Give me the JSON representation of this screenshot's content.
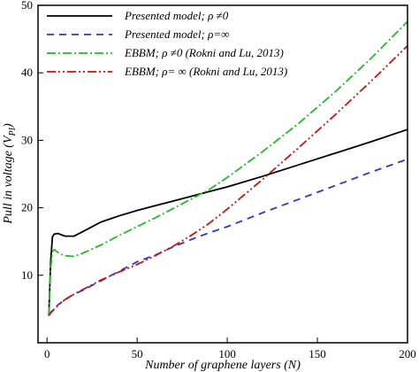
{
  "chart_data": {
    "type": "line",
    "xlabel": "Number of graphene layers (N)",
    "ylabel": "Pull in voltage (V",
    "ylabel_sub": "PI",
    "ylabel_close": ")",
    "xlim": [
      -5,
      200
    ],
    "ylim": [
      0,
      50
    ],
    "xticks": [
      0,
      50,
      100,
      150,
      200
    ],
    "yticks": [
      10,
      20,
      30,
      40,
      50
    ],
    "grid": false,
    "legend_position": "top-left",
    "series": [
      {
        "name": "Presented model; ρ ≠0",
        "color": "#000000",
        "dash": "",
        "x": [
          1,
          2,
          3,
          4,
          6,
          8,
          10,
          15,
          20,
          30,
          40,
          50,
          60,
          70,
          80,
          90,
          100,
          120,
          140,
          160,
          180,
          200
        ],
        "y": [
          4,
          12,
          15.7,
          16.1,
          16.2,
          16.0,
          15.8,
          15.8,
          16.5,
          17.9,
          18.8,
          19.6,
          20.3,
          21.0,
          21.7,
          22.4,
          23.1,
          24.7,
          26.4,
          28.1,
          29.8,
          31.6
        ]
      },
      {
        "name": "Presented model; ρ=∞",
        "color": "#3333cc",
        "dash": "8,6",
        "x": [
          1,
          2,
          4,
          6,
          8,
          10,
          15,
          20,
          30,
          40,
          50,
          60,
          70,
          80,
          90,
          100,
          120,
          140,
          160,
          180,
          200
        ],
        "y": [
          4,
          4.5,
          5.0,
          5.6,
          6.0,
          6.4,
          7.2,
          7.8,
          9.2,
          10.6,
          12.0,
          13.0,
          14.2,
          15.3,
          16.3,
          17.2,
          19.3,
          21.3,
          23.3,
          25.3,
          27.2
        ]
      },
      {
        "name": "EBBM; ρ ≠0 (Rokni and Lu, 2013)",
        "color": "#22bb22",
        "dash": "10,3,2,3",
        "x": [
          1,
          2,
          3,
          4,
          6,
          8,
          10,
          15,
          20,
          30,
          40,
          50,
          60,
          70,
          80,
          90,
          100,
          120,
          140,
          160,
          180,
          200
        ],
        "y": [
          4,
          11,
          13.5,
          13.8,
          13.4,
          13.1,
          12.9,
          12.8,
          13.3,
          14.5,
          15.9,
          17.2,
          18.5,
          19.9,
          21.3,
          22.7,
          24.5,
          28.4,
          32.6,
          37.2,
          42.2,
          47.6
        ]
      },
      {
        "name": "EBBM; ρ= ∞  (Rokni and Lu, 2013)",
        "color": "#cc1111",
        "dash": "10,3,2,3,2,3",
        "x": [
          1,
          2,
          4,
          6,
          8,
          10,
          15,
          20,
          30,
          40,
          50,
          60,
          70,
          80,
          90,
          100,
          120,
          140,
          160,
          180,
          200
        ],
        "y": [
          4,
          4.4,
          5.0,
          5.5,
          6.0,
          6.4,
          7.2,
          7.9,
          9.3,
          10.5,
          11.6,
          12.9,
          14.3,
          15.9,
          17.7,
          19.8,
          24.3,
          29.0,
          33.8,
          38.8,
          44.0
        ]
      }
    ]
  }
}
